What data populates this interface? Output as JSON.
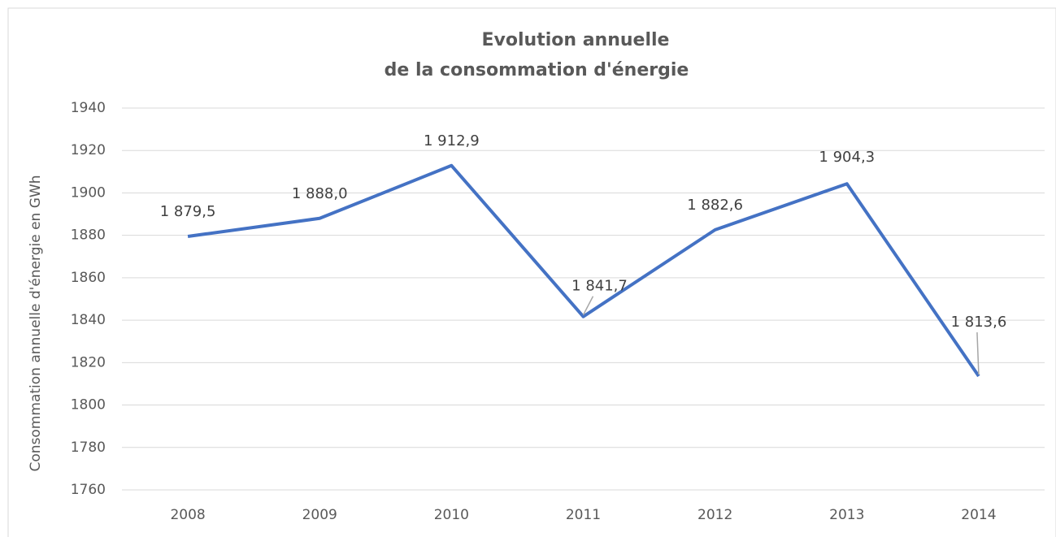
{
  "chart_data": {
    "type": "line",
    "title": [
      "Evolution annuelle",
      "de la consommation d'énergie"
    ],
    "y_label": "Consommation annuelle d'énergie en GWh",
    "categories": [
      "2008",
      "2009",
      "2010",
      "2011",
      "2012",
      "2013",
      "2014"
    ],
    "values": [
      1879.5,
      1888.0,
      1912.9,
      1841.7,
      1882.6,
      1904.3,
      1813.6
    ],
    "value_labels": [
      "1 879,5",
      "1 888,0",
      "1 912,9",
      "1 841,7",
      "1 882,6",
      "1 904,3",
      "1 813,6"
    ],
    "color": "#4472c4",
    "ylim": [
      1760,
      1940
    ],
    "yticks": [
      1760,
      1780,
      1800,
      1820,
      1840,
      1860,
      1880,
      1900,
      1920,
      1940
    ],
    "grid": true
  }
}
